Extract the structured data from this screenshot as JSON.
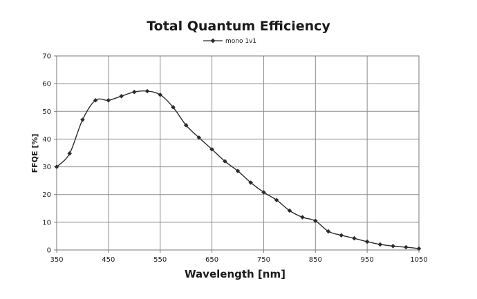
{
  "chart_data": {
    "type": "line",
    "title": "Total Quantum Efficiency",
    "xlabel": "Wavelength [nm]",
    "ylabel": "FFQE [%]",
    "xlim": [
      350,
      1050
    ],
    "ylim": [
      0,
      70
    ],
    "xticks": [
      350,
      450,
      550,
      650,
      750,
      850,
      950,
      1050
    ],
    "yticks": [
      0,
      10,
      20,
      30,
      40,
      50,
      60,
      70
    ],
    "grid": true,
    "legend_position": "top-center",
    "series": [
      {
        "name": "mono 1v1",
        "color": "#2b2b2b",
        "marker": "diamond",
        "x": [
          350,
          375,
          400,
          425,
          450,
          475,
          500,
          525,
          550,
          575,
          600,
          625,
          650,
          675,
          700,
          725,
          750,
          775,
          800,
          825,
          850,
          875,
          900,
          925,
          950,
          975,
          1000,
          1025,
          1050
        ],
        "y": [
          30,
          34.8,
          47,
          54,
          54,
          55.5,
          57,
          57.3,
          56,
          51.5,
          45,
          40.5,
          36.3,
          32,
          28.5,
          24.3,
          20.8,
          18,
          14.2,
          11.8,
          10.5,
          6.7,
          5.3,
          4.2,
          3,
          2,
          1.4,
          1,
          0.5
        ]
      }
    ]
  }
}
